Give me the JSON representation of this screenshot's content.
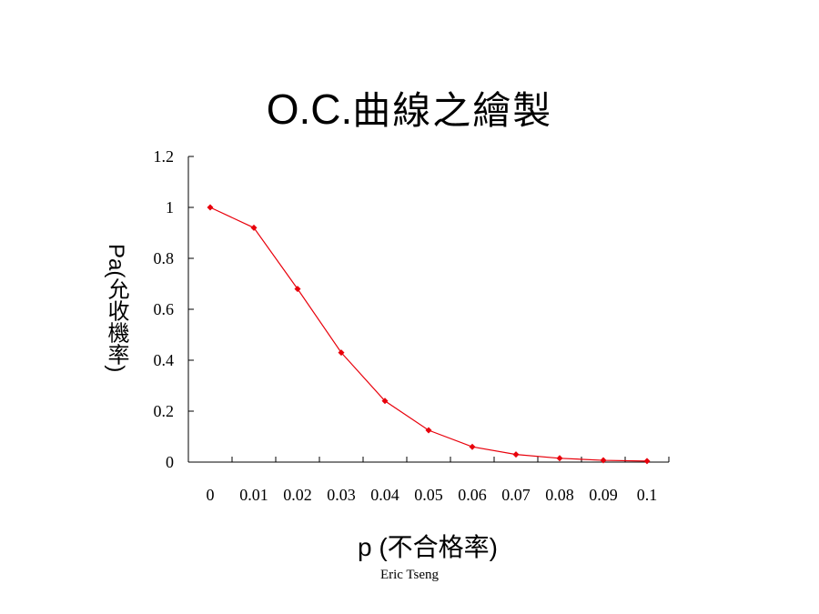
{
  "title": {
    "latin": "O.C.",
    "cjk": "曲線之繪製"
  },
  "author": "Eric Tseng",
  "chart_data": {
    "type": "line",
    "xlabel": "p (不合格率)",
    "ylabel": "Pa(允收機率)",
    "x_tick_labels": [
      "0",
      "0.01",
      "0.02",
      "0.03",
      "0.04",
      "0.05",
      "0.06",
      "0.07",
      "0.08",
      "0.09",
      "0.1"
    ],
    "y_tick_labels": [
      "0",
      "0.2",
      "0.4",
      "0.6",
      "0.8",
      "1",
      "1.2"
    ],
    "x": [
      0,
      0.01,
      0.02,
      0.03,
      0.04,
      0.05,
      0.06,
      0.07,
      0.08,
      0.09,
      0.1
    ],
    "ylim": [
      0,
      1.2
    ],
    "series": [
      {
        "values": [
          1.0,
          0.92,
          0.68,
          0.43,
          0.24,
          0.125,
          0.06,
          0.03,
          0.015,
          0.007,
          0.004
        ]
      }
    ],
    "grid": false,
    "legend": "none"
  },
  "colors": {
    "series": "#e8000b",
    "axis": "#000000"
  }
}
